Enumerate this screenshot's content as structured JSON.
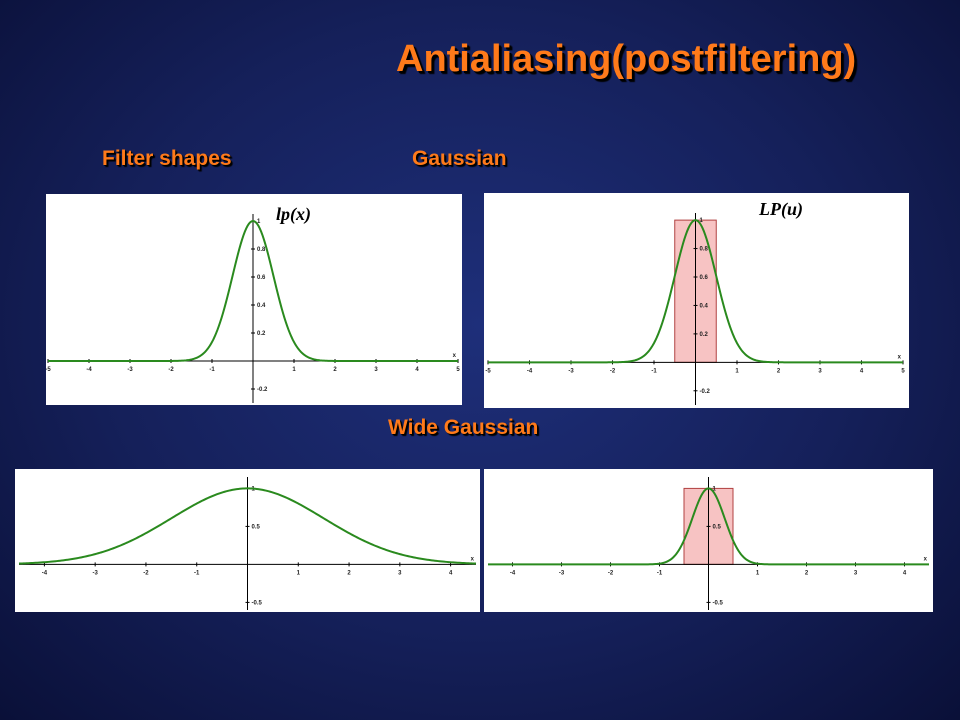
{
  "slide": {
    "title": "Antialiasing(postfiltering)",
    "labels": {
      "filter_shapes": "Filter shapes",
      "gaussian": "Gaussian",
      "wide_gaussian": "Wide Gaussian"
    }
  },
  "colors": {
    "background": "#15205a",
    "title": "#ff7a1a",
    "curve": "#2a8a1e",
    "box_fill": "#f7c3c3",
    "box_stroke": "#b04040"
  },
  "chart_data": [
    {
      "id": "p1",
      "type": "line",
      "title": "lp(x)",
      "xlim": [
        -5,
        5
      ],
      "ylim": [
        -0.3,
        1.05
      ],
      "xticks": [
        "-5",
        "-4",
        "-3",
        "-2",
        "-1",
        "1",
        "2",
        "3",
        "4",
        "5"
      ],
      "xaxis_label": "x",
      "yticks": [
        "-0.2",
        "0.2",
        "0.4",
        "0.6",
        "0.8",
        "1"
      ],
      "series": [
        {
          "function": "gaussian",
          "amplitude": 1,
          "sigma": 0.5
        }
      ]
    },
    {
      "id": "p2",
      "type": "line",
      "title": "LP(u)",
      "xlim": [
        -5,
        5
      ],
      "ylim": [
        -0.3,
        1.05
      ],
      "xticks": [
        "-5",
        "-4",
        "-3",
        "-2",
        "-1",
        "1",
        "2",
        "3",
        "4",
        "5"
      ],
      "xaxis_label": "x",
      "yticks": [
        "-0.2",
        "0.2",
        "0.4",
        "0.6",
        "0.8",
        "1"
      ],
      "series": [
        {
          "function": "gaussian",
          "amplitude": 1,
          "sigma": 0.5
        }
      ],
      "box": {
        "x0": -0.5,
        "x1": 0.5,
        "height": 1
      }
    },
    {
      "id": "p3",
      "type": "line",
      "title": "",
      "xlim": [
        -4.5,
        4.5
      ],
      "ylim": [
        -0.6,
        1.15
      ],
      "xticks": [
        "-4",
        "-3",
        "-2",
        "-1",
        "1",
        "2",
        "3",
        "4"
      ],
      "xaxis_label": "x",
      "yticks": [
        "-0.5",
        "0.5",
        "1"
      ],
      "series": [
        {
          "function": "gaussian",
          "amplitude": 1,
          "sigma": 1.5
        }
      ]
    },
    {
      "id": "p4",
      "type": "line",
      "title": "",
      "xlim": [
        -4.5,
        4.5
      ],
      "ylim": [
        -0.6,
        1.15
      ],
      "xticks": [
        "-4",
        "-3",
        "-2",
        "-1",
        "1",
        "2",
        "3",
        "4"
      ],
      "xaxis_label": "x",
      "yticks": [
        "-0.5",
        "0.5",
        "1"
      ],
      "series": [
        {
          "function": "gaussian",
          "amplitude": 1,
          "sigma": 0.33
        }
      ],
      "box": {
        "x0": -0.5,
        "x1": 0.5,
        "height": 1
      }
    }
  ]
}
